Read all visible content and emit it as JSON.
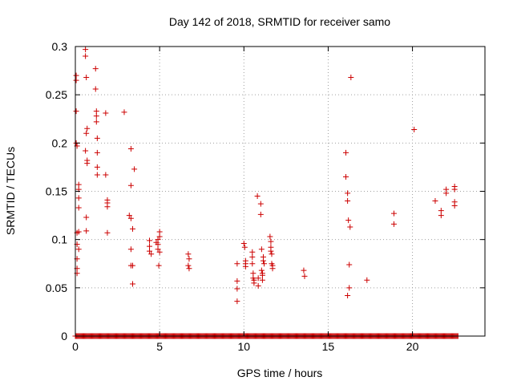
{
  "chart_data": {
    "type": "scatter",
    "title": "Day 142 of 2018, SRMTID for receiver samo",
    "xlabel": "GPS time / hours",
    "ylabel": "SRMTID / TECUs",
    "xlim": [
      0,
      24.3
    ],
    "ylim": [
      0,
      0.3
    ],
    "xticks": [
      0,
      5,
      10,
      15,
      20
    ],
    "xtick_labels": [
      "0",
      "5",
      "10",
      "15",
      "20"
    ],
    "yticks": [
      0,
      0.05,
      0.1,
      0.15,
      0.2,
      0.25,
      0.3
    ],
    "ytick_labels": [
      "0",
      "0.05",
      "0.1",
      "0.15",
      "0.2",
      "0.25",
      "0.3"
    ],
    "grid": true,
    "marker": "+",
    "color": "#cc0000",
    "baseline_zero_points": {
      "x_start": 0,
      "x_end": 22.7,
      "step": 0.05,
      "y": 0
    },
    "series": [
      {
        "name": "SRMTID",
        "points": [
          [
            0.05,
            0.27
          ],
          [
            0.05,
            0.265
          ],
          [
            0.05,
            0.233
          ],
          [
            0.05,
            0.2
          ],
          [
            0.1,
            0.197
          ],
          [
            0.1,
            0.107
          ],
          [
            0.1,
            0.095
          ],
          [
            0.1,
            0.08
          ],
          [
            0.1,
            0.07
          ],
          [
            0.1,
            0.065
          ],
          [
            0.2,
            0.157
          ],
          [
            0.2,
            0.152
          ],
          [
            0.2,
            0.143
          ],
          [
            0.2,
            0.133
          ],
          [
            0.2,
            0.108
          ],
          [
            0.2,
            0.09
          ],
          [
            0.6,
            0.297
          ],
          [
            0.6,
            0.29
          ],
          [
            0.65,
            0.268
          ],
          [
            0.65,
            0.21
          ],
          [
            0.7,
            0.215
          ],
          [
            0.6,
            0.192
          ],
          [
            0.7,
            0.182
          ],
          [
            0.7,
            0.179
          ],
          [
            0.65,
            0.123
          ],
          [
            0.65,
            0.109
          ],
          [
            1.2,
            0.277
          ],
          [
            1.2,
            0.256
          ],
          [
            1.25,
            0.233
          ],
          [
            1.25,
            0.228
          ],
          [
            1.25,
            0.222
          ],
          [
            1.3,
            0.205
          ],
          [
            1.3,
            0.19
          ],
          [
            1.3,
            0.175
          ],
          [
            1.3,
            0.167
          ],
          [
            1.8,
            0.231
          ],
          [
            1.8,
            0.167
          ],
          [
            1.9,
            0.141
          ],
          [
            1.9,
            0.138
          ],
          [
            1.9,
            0.134
          ],
          [
            1.9,
            0.107
          ],
          [
            2.9,
            0.232
          ],
          [
            3.2,
            0.125
          ],
          [
            3.3,
            0.122
          ],
          [
            3.3,
            0.194
          ],
          [
            3.5,
            0.173
          ],
          [
            3.3,
            0.156
          ],
          [
            3.4,
            0.111
          ],
          [
            3.3,
            0.09
          ],
          [
            3.3,
            0.073
          ],
          [
            3.4,
            0.073
          ],
          [
            3.4,
            0.054
          ],
          [
            4.4,
            0.099
          ],
          [
            4.4,
            0.093
          ],
          [
            4.4,
            0.088
          ],
          [
            4.5,
            0.085
          ],
          [
            4.8,
            0.097
          ],
          [
            4.9,
            0.1
          ],
          [
            4.9,
            0.095
          ],
          [
            4.9,
            0.09
          ],
          [
            5.0,
            0.108
          ],
          [
            5.0,
            0.103
          ],
          [
            5.0,
            0.087
          ],
          [
            4.95,
            0.073
          ],
          [
            6.7,
            0.085
          ],
          [
            6.75,
            0.08
          ],
          [
            6.7,
            0.073
          ],
          [
            6.75,
            0.07
          ],
          [
            9.6,
            0.075
          ],
          [
            9.6,
            0.057
          ],
          [
            9.6,
            0.049
          ],
          [
            9.6,
            0.036
          ],
          [
            10.0,
            0.096
          ],
          [
            10.05,
            0.092
          ],
          [
            10.1,
            0.078
          ],
          [
            10.1,
            0.075
          ],
          [
            10.1,
            0.072
          ],
          [
            10.5,
            0.087
          ],
          [
            10.5,
            0.082
          ],
          [
            10.5,
            0.075
          ],
          [
            10.55,
            0.065
          ],
          [
            10.55,
            0.06
          ],
          [
            10.6,
            0.058
          ],
          [
            10.6,
            0.055
          ],
          [
            10.8,
            0.145
          ],
          [
            10.85,
            0.052
          ],
          [
            10.85,
            0.06
          ],
          [
            11.0,
            0.137
          ],
          [
            11.0,
            0.126
          ],
          [
            11.05,
            0.09
          ],
          [
            11.05,
            0.068
          ],
          [
            11.1,
            0.065
          ],
          [
            11.1,
            0.063
          ],
          [
            11.1,
            0.058
          ],
          [
            11.15,
            0.082
          ],
          [
            11.15,
            0.078
          ],
          [
            11.2,
            0.075
          ],
          [
            11.55,
            0.103
          ],
          [
            11.6,
            0.098
          ],
          [
            11.6,
            0.092
          ],
          [
            11.6,
            0.088
          ],
          [
            11.65,
            0.085
          ],
          [
            11.65,
            0.075
          ],
          [
            11.7,
            0.073
          ],
          [
            11.7,
            0.07
          ],
          [
            13.55,
            0.068
          ],
          [
            13.6,
            0.062
          ],
          [
            16.05,
            0.19
          ],
          [
            16.05,
            0.165
          ],
          [
            16.15,
            0.148
          ],
          [
            16.15,
            0.14
          ],
          [
            16.2,
            0.12
          ],
          [
            16.3,
            0.113
          ],
          [
            16.25,
            0.074
          ],
          [
            16.25,
            0.05
          ],
          [
            16.15,
            0.042
          ],
          [
            16.35,
            0.268
          ],
          [
            17.3,
            0.058
          ],
          [
            18.9,
            0.127
          ],
          [
            18.9,
            0.116
          ],
          [
            20.1,
            0.214
          ],
          [
            21.35,
            0.14
          ],
          [
            21.7,
            0.13
          ],
          [
            21.7,
            0.125
          ],
          [
            22.0,
            0.152
          ],
          [
            22.0,
            0.148
          ],
          [
            22.5,
            0.155
          ],
          [
            22.5,
            0.152
          ],
          [
            22.5,
            0.139
          ],
          [
            22.5,
            0.135
          ]
        ]
      }
    ]
  }
}
